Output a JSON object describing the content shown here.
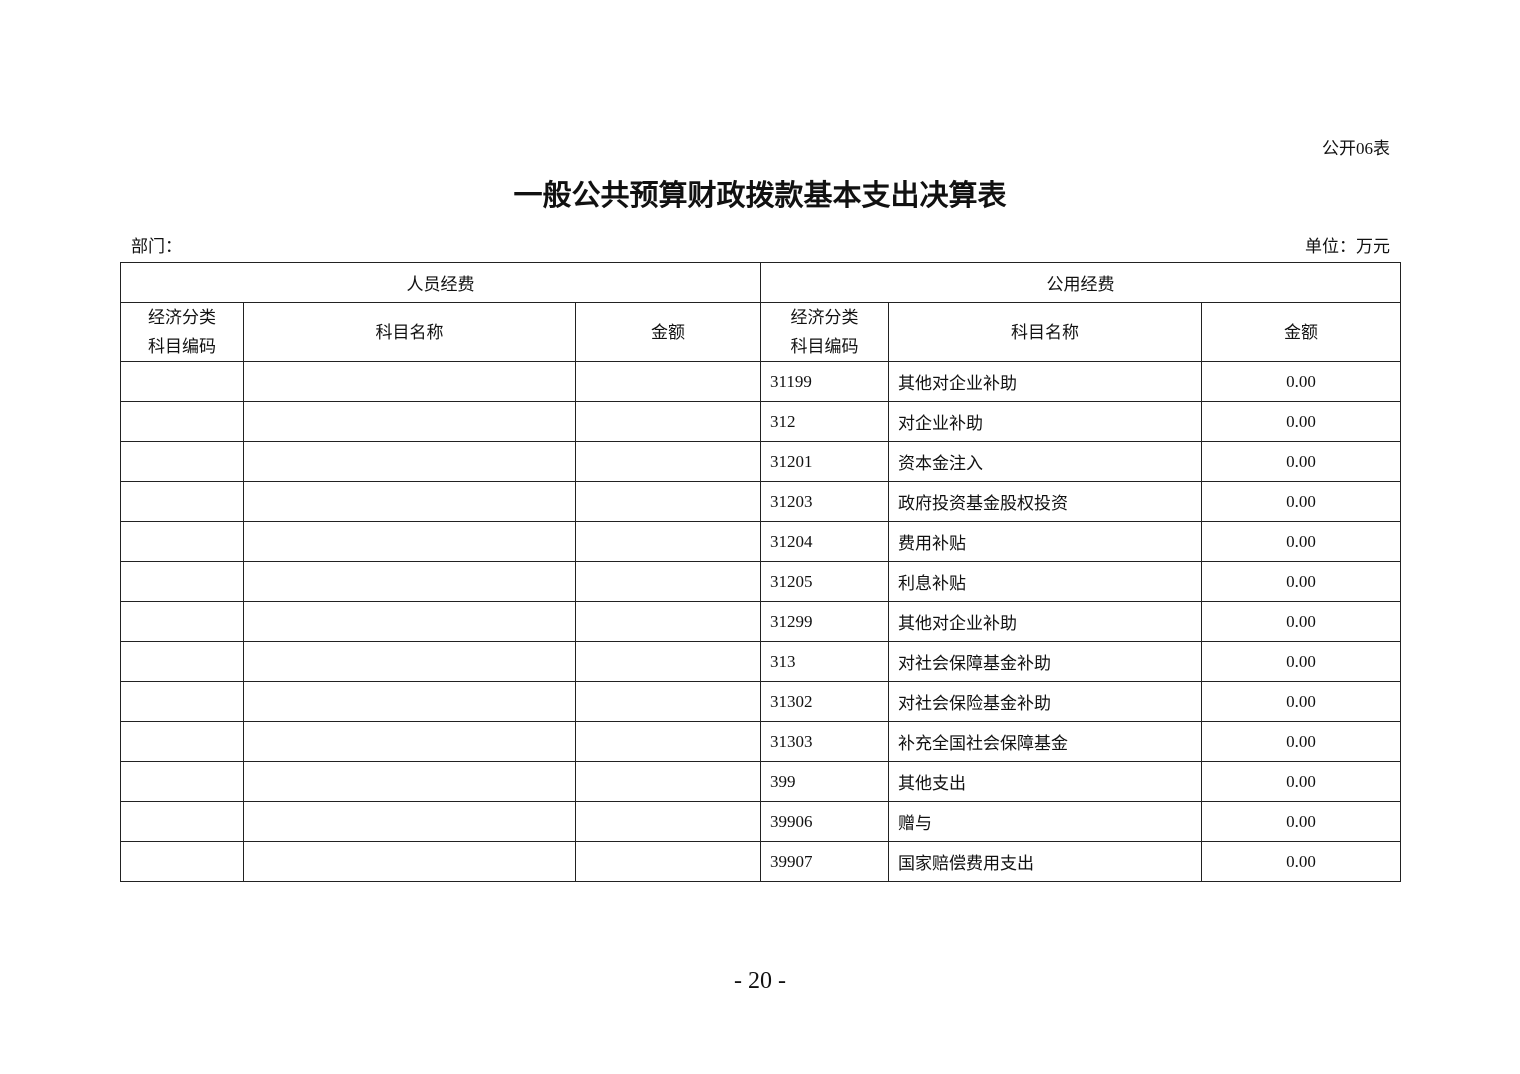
{
  "table_no": "公开06表",
  "title": "一般公共预算财政拨款基本支出决算表",
  "department_label": "部门：",
  "unit_label": "单位：万元",
  "groups": {
    "personnel": "人员经费",
    "public": "公用经费"
  },
  "columns": {
    "code": "经济分类科目编码",
    "code_line1": "经济分类",
    "code_line2": "科目编码",
    "name": "科目名称",
    "amount": "金额"
  },
  "rows": [
    {
      "code": "31199",
      "name": "其他对企业补助",
      "amount": "0.00"
    },
    {
      "code": "312",
      "name": "对企业补助",
      "amount": "0.00"
    },
    {
      "code": "31201",
      "name": "资本金注入",
      "amount": "0.00"
    },
    {
      "code": "31203",
      "name": "政府投资基金股权投资",
      "amount": "0.00"
    },
    {
      "code": "31204",
      "name": "费用补贴",
      "amount": "0.00"
    },
    {
      "code": "31205",
      "name": "利息补贴",
      "amount": "0.00"
    },
    {
      "code": "31299",
      "name": "其他对企业补助",
      "amount": "0.00"
    },
    {
      "code": "313",
      "name": "对社会保障基金补助",
      "amount": "0.00"
    },
    {
      "code": "31302",
      "name": "对社会保险基金补助",
      "amount": "0.00"
    },
    {
      "code": "31303",
      "name": "补充全国社会保障基金",
      "amount": "0.00"
    },
    {
      "code": "399",
      "name": "其他支出",
      "amount": "0.00"
    },
    {
      "code": "39906",
      "name": "赠与",
      "amount": "0.00"
    },
    {
      "code": "39907",
      "name": "国家赔偿费用支出",
      "amount": "0.00"
    }
  ],
  "page_number": "- 20 -"
}
